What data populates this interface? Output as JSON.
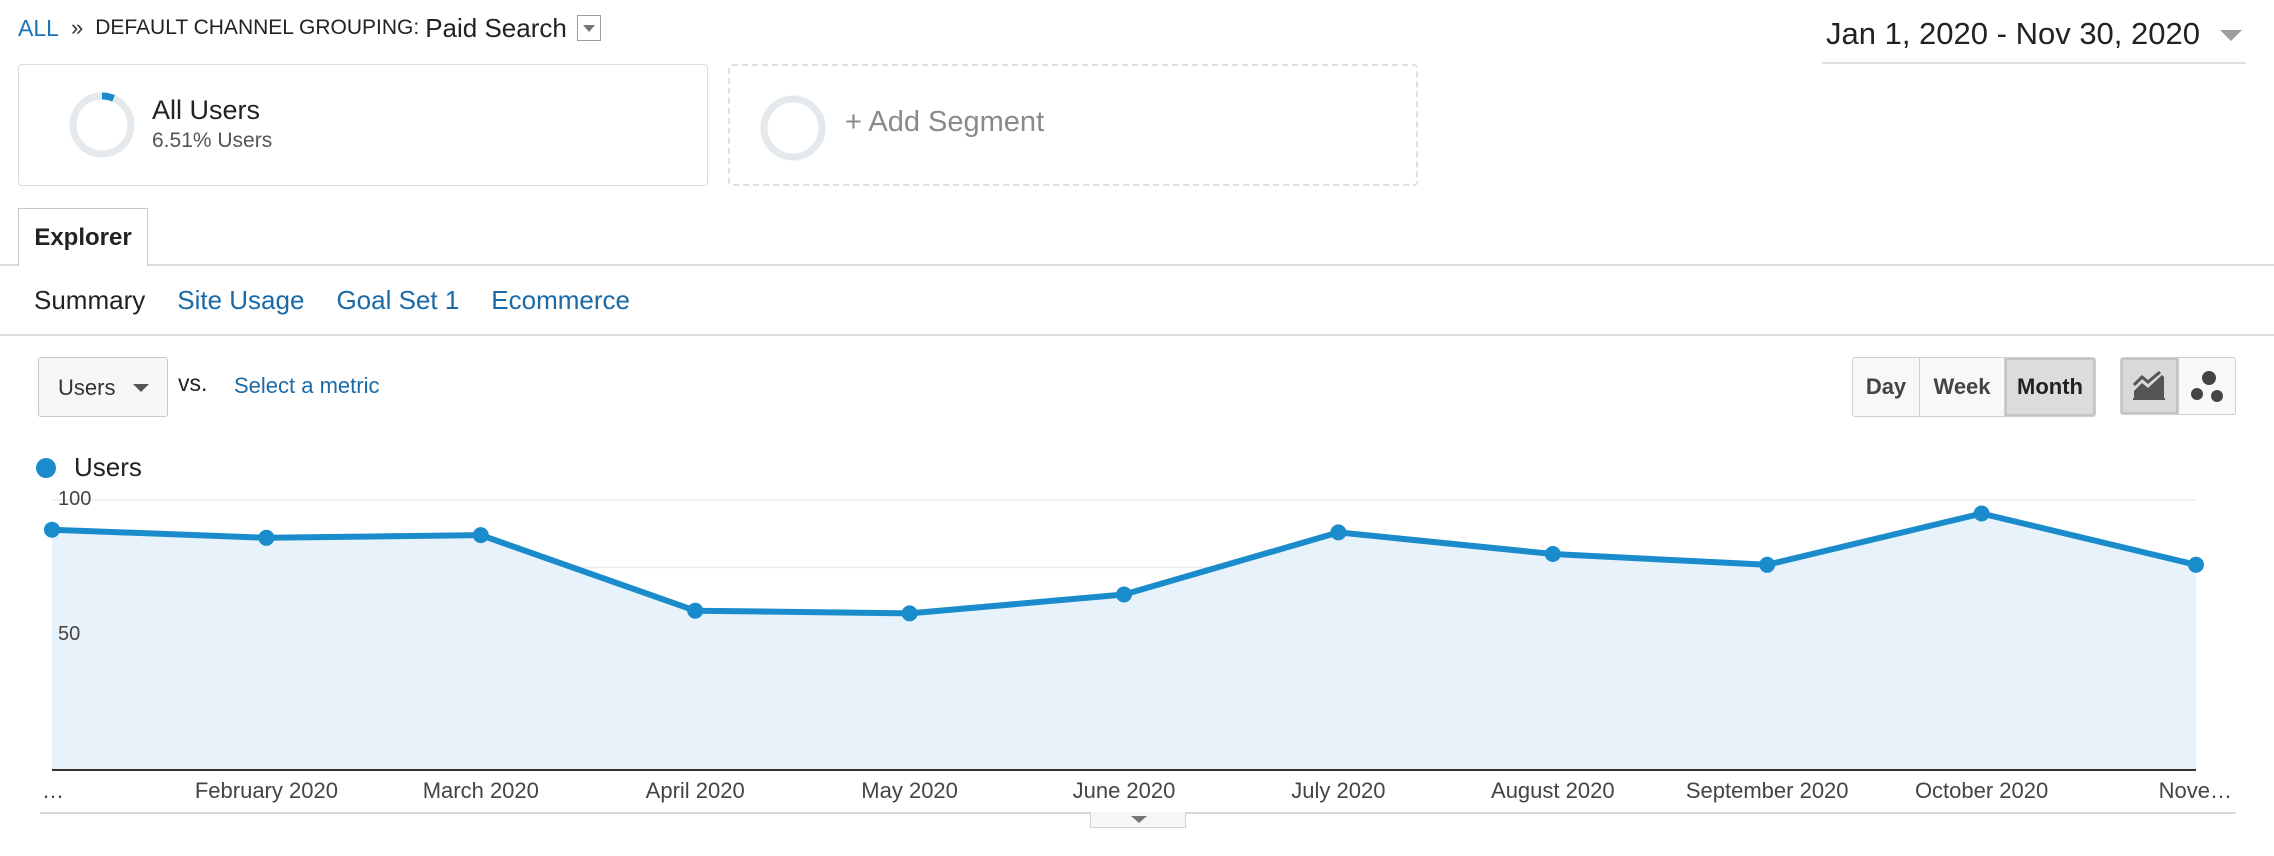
{
  "breadcrumb": {
    "root": "ALL",
    "separator": "»",
    "dimension": "DEFAULT CHANNEL GROUPING:",
    "value": "Paid Search"
  },
  "date_range": "Jan 1, 2020 - Nov 30, 2020",
  "segments": {
    "all_users": {
      "name": "All Users",
      "percent_text": "6.51% Users",
      "fraction": 0.0651
    },
    "add": "+ Add Segment"
  },
  "tabs": {
    "explorer": "Explorer"
  },
  "subtabs": [
    "Summary",
    "Site Usage",
    "Goal Set 1",
    "Ecommerce"
  ],
  "metric": {
    "selected": "Users",
    "vs": "vs.",
    "select_metric": "Select a metric"
  },
  "period_buttons": [
    "Day",
    "Week",
    "Month"
  ],
  "active_period": "Month",
  "chart_type_buttons": [
    "line-chart-icon",
    "motion-chart-icon"
  ],
  "colors": {
    "series": "#1a8ccc",
    "fill": "#e7f2fa",
    "link": "#1a6aa8"
  },
  "chart_data": {
    "type": "area",
    "x_tick_labels": [
      "…",
      "February 2020",
      "March 2020",
      "April 2020",
      "May 2020",
      "June 2020",
      "July 2020",
      "August 2020",
      "September 2020",
      "October 2020",
      "Nove…"
    ],
    "series": [
      {
        "name": "Users",
        "values": [
          89,
          86,
          87,
          59,
          58,
          65,
          88,
          80,
          76,
          95,
          76
        ]
      }
    ],
    "y_ticks": [
      100,
      50
    ],
    "ylim": [
      0,
      100
    ],
    "grid": true,
    "legend": "top-left"
  }
}
